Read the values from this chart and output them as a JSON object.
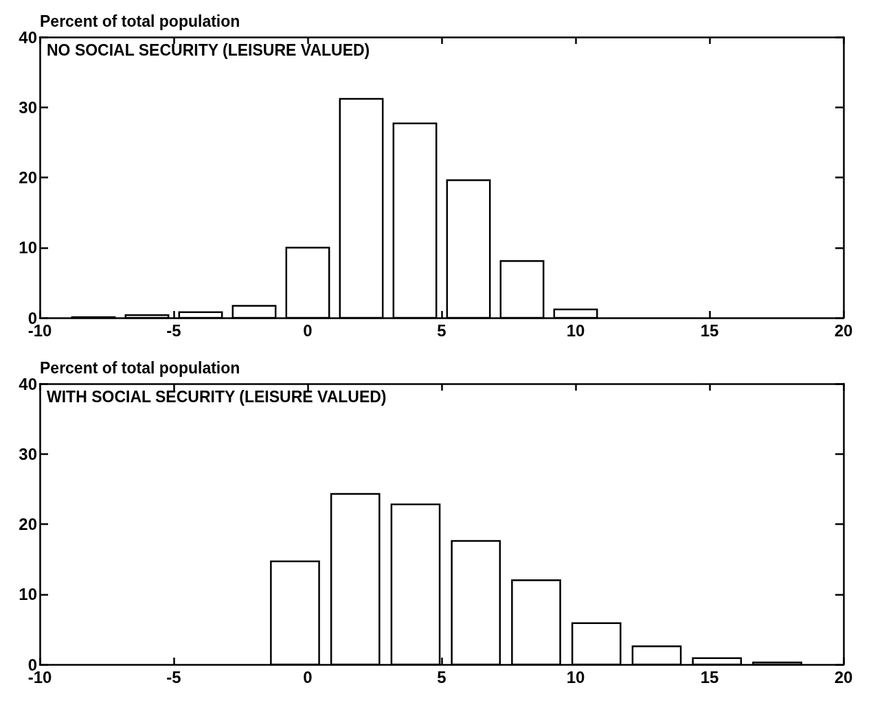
{
  "chart_data": [
    {
      "type": "histogram",
      "title": "NO SOCIAL SECURITY (LEISURE VALUED)",
      "ylabel": "Percent of total population",
      "bins": [
        -9,
        -7,
        -5,
        -3,
        -1,
        1,
        3,
        5,
        7,
        9,
        11
      ],
      "values": [
        0.1,
        0.4,
        0.8,
        1.7,
        10.0,
        31.2,
        27.7,
        19.6,
        8.1,
        1.2
      ],
      "color": "#000000",
      "xlim": [
        -10,
        20
      ],
      "xticks": [
        -10,
        -5,
        0,
        5,
        10,
        15,
        20
      ],
      "ylim": [
        0,
        40
      ],
      "yticks": [
        0,
        10,
        20,
        30,
        40
      ],
      "grid": false
    },
    {
      "type": "histogram",
      "title": "WITH SOCIAL SECURITY (LEISURE VALUED)",
      "ylabel": "Percent of total population",
      "bins": [
        -1.6,
        0.65,
        2.9,
        5.15,
        7.4,
        9.65,
        11.9,
        14.15,
        16.4,
        18.65
      ],
      "values": [
        14.7,
        24.3,
        22.8,
        17.6,
        12.0,
        5.9,
        2.6,
        0.9,
        0.3
      ],
      "color": "#000000",
      "xlim": [
        -10,
        20
      ],
      "xticks": [
        -10,
        -5,
        0,
        5,
        10,
        15,
        20
      ],
      "ylim": [
        0,
        40
      ],
      "yticks": [
        0,
        10,
        20,
        30,
        40
      ],
      "grid": false
    }
  ]
}
